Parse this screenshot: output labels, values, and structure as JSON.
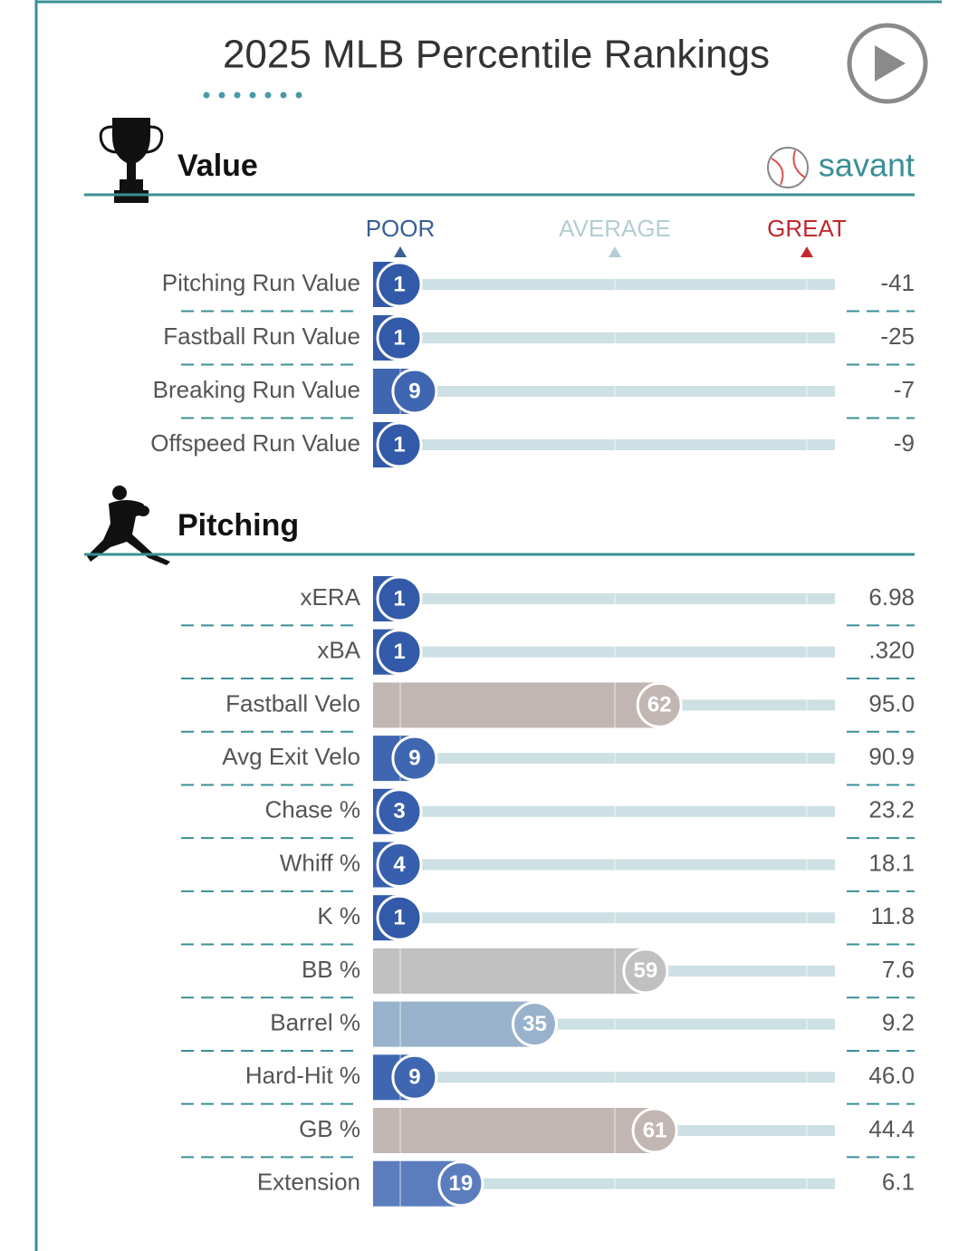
{
  "header": {
    "title": "2025 MLB Percentile Rankings",
    "logo_text": "savant"
  },
  "chart_data": [
    {
      "type": "bar",
      "title": "Value",
      "scale_labels": [
        "POOR",
        "AVERAGE",
        "GREAT"
      ],
      "xlim": [
        0,
        100
      ],
      "categories": [
        "Pitching Run Value",
        "Fastball Run Value",
        "Breaking Run Value",
        "Offspeed Run Value"
      ],
      "values": [
        1,
        1,
        9,
        1
      ],
      "colors": [
        "#325aa8",
        "#325aa8",
        "#3f66b0",
        "#325aa8"
      ],
      "stats": [
        "-41",
        "-25",
        "-7",
        "-9"
      ]
    },
    {
      "type": "bar",
      "title": "Pitching",
      "xlim": [
        0,
        100
      ],
      "categories": [
        "xERA",
        "xBA",
        "Fastball Velo",
        "Avg Exit Velo",
        "Chase %",
        "Whiff %",
        "K %",
        "BB %",
        "Barrel %",
        "Hard-Hit %",
        "GB %",
        "Extension"
      ],
      "values": [
        1,
        1,
        62,
        9,
        3,
        4,
        1,
        59,
        35,
        9,
        61,
        19
      ],
      "colors": [
        "#325aa8",
        "#325aa8",
        "#c2b6b3",
        "#3f66b0",
        "#365ead",
        "#375fad",
        "#325aa8",
        "#c0c0c0",
        "#98b2cb",
        "#3f66b0",
        "#c2b6b3",
        "#5b7dbd"
      ],
      "stats": [
        "6.98",
        ".320",
        "95.0",
        "90.9",
        "23.2",
        "18.1",
        "11.8",
        "7.6",
        "9.2",
        "46.0",
        "44.4",
        "6.1"
      ]
    }
  ]
}
